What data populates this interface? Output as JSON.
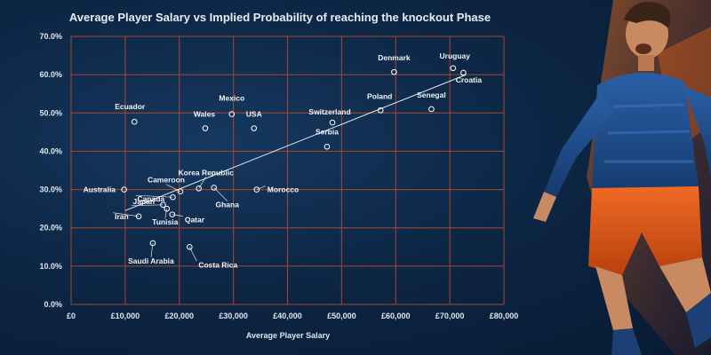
{
  "colors": {
    "background": "#0d2746",
    "grid": "#a9472e",
    "text": "#e6edf5",
    "point_stroke": "#ffffff",
    "trendline": "#ffffff",
    "player_kit": "#1f4f8f",
    "player_shorts": "#e8531c"
  },
  "illustration": {
    "icon": "footballer-celebrating-illustration"
  },
  "chart_data": {
    "type": "scatter",
    "title": "Average Player Salary vs Implied Probability of reaching the knockout Phase",
    "xlabel": "Average Player Salary",
    "ylabel": "",
    "xlim": [
      0,
      80000
    ],
    "ylim": [
      0,
      70
    ],
    "x_ticks": [
      "£0",
      "£10,000",
      "£20,000",
      "£30,000",
      "£40,000",
      "£50,000",
      "£60,000",
      "£70,000",
      "£80,000"
    ],
    "y_ticks": [
      "0.0%",
      "10.0%",
      "20.0%",
      "30.0%",
      "40.0%",
      "50.0%",
      "60.0%",
      "70.0%"
    ],
    "grid": true,
    "trendline": {
      "x": [
        10000,
        73000
      ],
      "y": [
        24.5,
        60
      ]
    },
    "points": [
      {
        "label": "Ecuador",
        "x": 11700,
        "y": 47.7
      },
      {
        "label": "Australia",
        "x": 9800,
        "y": 30.0
      },
      {
        "label": "Iran",
        "x": 12500,
        "y": 23.0
      },
      {
        "label": "Saudi Arabia",
        "x": 15100,
        "y": 16.0
      },
      {
        "label": "Japan",
        "x": 17000,
        "y": 26.0
      },
      {
        "label": "Canada",
        "x": 18800,
        "y": 28.0
      },
      {
        "label": "Tunisia",
        "x": 17700,
        "y": 25.0
      },
      {
        "label": "Qatar",
        "x": 18700,
        "y": 23.5
      },
      {
        "label": "Cameroon",
        "x": 20200,
        "y": 29.5
      },
      {
        "label": "Costa Rica",
        "x": 21900,
        "y": 15.0
      },
      {
        "label": "Korea Republic",
        "x": 23600,
        "y": 30.3
      },
      {
        "label": "Ghana",
        "x": 26400,
        "y": 30.5
      },
      {
        "label": "Wales",
        "x": 24800,
        "y": 46.0
      },
      {
        "label": "Mexico",
        "x": 29700,
        "y": 49.7
      },
      {
        "label": "USA",
        "x": 33800,
        "y": 46.0
      },
      {
        "label": "Morocco",
        "x": 34300,
        "y": 30.0
      },
      {
        "label": "Serbia",
        "x": 47300,
        "y": 41.2
      },
      {
        "label": "Switzerland",
        "x": 48300,
        "y": 47.5
      },
      {
        "label": "Poland",
        "x": 57200,
        "y": 50.7
      },
      {
        "label": "Denmark",
        "x": 59700,
        "y": 60.7
      },
      {
        "label": "Senegal",
        "x": 66600,
        "y": 51.0
      },
      {
        "label": "Uruguay",
        "x": 70600,
        "y": 61.7
      },
      {
        "label": "Croatia",
        "x": 72500,
        "y": 60.5
      }
    ]
  }
}
